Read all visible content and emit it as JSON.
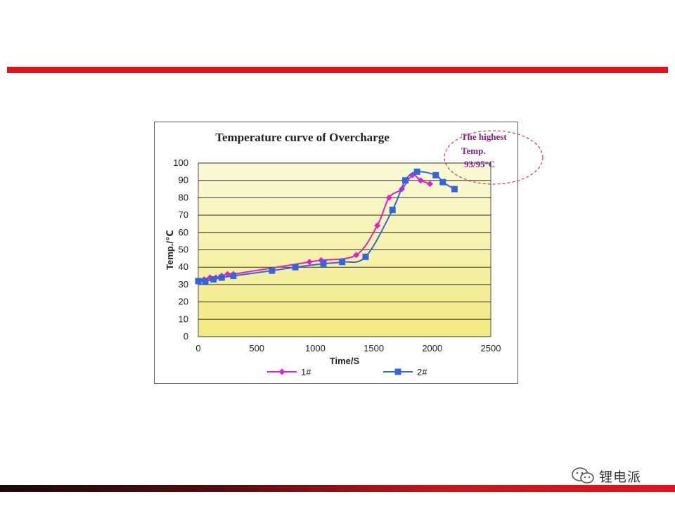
{
  "slide": {
    "top_bar_color": "#e8111b",
    "bottom_bar_color": "#e8111b",
    "watermark_text": "锂电派",
    "watermark_icon": "wechat-icon"
  },
  "callout": {
    "lines": [
      "The highest",
      "Temp.",
      "93/95°C"
    ],
    "color": "#8b1a8b",
    "border_color": "#e8111b"
  },
  "chart_data": {
    "type": "line",
    "title": "Temperature curve of Overcharge",
    "xlabel": "Time/S",
    "ylabel": "Temp./℃",
    "xlim": [
      0,
      2500
    ],
    "ylim": [
      0,
      100
    ],
    "xticks": [
      0,
      500,
      1000,
      1500,
      2000,
      2500
    ],
    "yticks": [
      0,
      10,
      20,
      30,
      40,
      50,
      60,
      70,
      80,
      90,
      100
    ],
    "grid": true,
    "legend_position": "bottom",
    "plot_background": [
      "#fafad8",
      "#f2ea80"
    ],
    "series": [
      {
        "name": "1#",
        "color": "#e020d0",
        "marker": "diamond",
        "points": [
          [
            0,
            32
          ],
          [
            50,
            33
          ],
          [
            100,
            34
          ],
          [
            150,
            34
          ],
          [
            200,
            35
          ],
          [
            250,
            36
          ],
          [
            300,
            36
          ],
          [
            950,
            43
          ],
          [
            1050,
            44
          ],
          [
            1350,
            47
          ],
          [
            1530,
            64
          ],
          [
            1630,
            80
          ],
          [
            1740,
            85
          ],
          [
            1830,
            93
          ],
          [
            1900,
            90
          ],
          [
            1980,
            88
          ]
        ]
      },
      {
        "name": "2#",
        "color": "#3366dd",
        "marker": "square",
        "points": [
          [
            0,
            32
          ],
          [
            60,
            32
          ],
          [
            130,
            33
          ],
          [
            200,
            34
          ],
          [
            300,
            35
          ],
          [
            630,
            38
          ],
          [
            830,
            40
          ],
          [
            1070,
            42
          ],
          [
            1230,
            43
          ],
          [
            1430,
            46
          ],
          [
            1660,
            73
          ],
          [
            1770,
            90
          ],
          [
            1870,
            95
          ],
          [
            2030,
            93
          ],
          [
            2090,
            89
          ],
          [
            2190,
            85
          ]
        ]
      }
    ]
  }
}
